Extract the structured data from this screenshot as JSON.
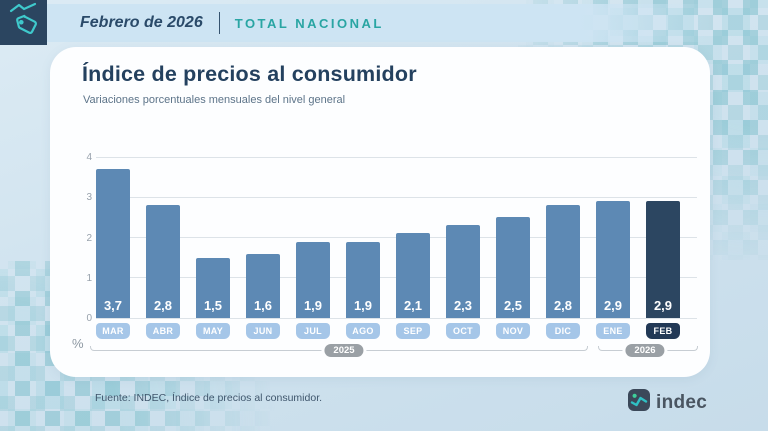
{
  "header": {
    "period": "Febrero de 2026",
    "scope": "TOTAL NACIONAL"
  },
  "card": {
    "title": "Índice de precios al consumidor",
    "subtitle": "Variaciones porcentuales mensuales del nivel general",
    "unit": "%"
  },
  "chart_data": {
    "type": "bar",
    "title": "Índice de precios al consumidor",
    "subtitle": "Variaciones porcentuales mensuales del nivel general",
    "ylabel": "%",
    "xlabel": "",
    "categories": [
      "MAR",
      "ABR",
      "MAY",
      "JUN",
      "JUL",
      "AGO",
      "SEP",
      "OCT",
      "NOV",
      "DIC",
      "ENE",
      "FEB"
    ],
    "values": [
      3.7,
      2.8,
      1.5,
      1.6,
      1.9,
      1.9,
      2.1,
      2.3,
      2.5,
      2.8,
      2.9,
      2.9
    ],
    "value_labels": [
      "3,7",
      "2,8",
      "1,5",
      "1,6",
      "1,9",
      "1,9",
      "2,1",
      "2,3",
      "2,5",
      "2,8",
      "2,9",
      "2,9"
    ],
    "highlight_index": 11,
    "ylim": [
      0,
      4
    ],
    "yticks": [
      0,
      1,
      2,
      3,
      4
    ],
    "grid": "horizontal",
    "legend": "none",
    "year_groups": [
      {
        "label": "2025",
        "span": "MAR-DIC"
      },
      {
        "label": "2026",
        "span": "ENE-FEB"
      }
    ],
    "colors": {
      "bar": "#5d89b4",
      "bar_highlight": "#2c4661",
      "month_pill": "#a5c6e8",
      "month_pill_highlight": "#223956",
      "year_pill": "#9aa0a5",
      "accent_teal": "#2fb9bd",
      "navy": "#2b4560"
    }
  },
  "footer": {
    "source": "Fuente: INDEC, Índice de precios al consumidor.",
    "logo_text": "indec"
  }
}
